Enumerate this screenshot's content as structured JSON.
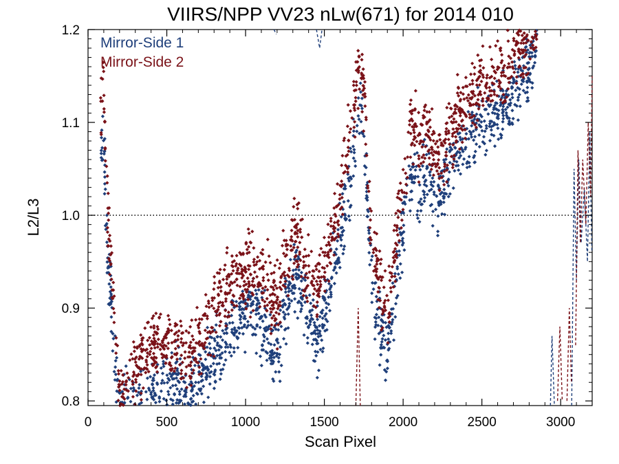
{
  "chart_data": {
    "type": "scatter",
    "title": "VIIRS/NPP VV23 nLw(671) for 2014 010",
    "xlabel": "Scan Pixel",
    "ylabel": "L2/L3",
    "xlim": [
      0,
      3200
    ],
    "ylim": [
      0.795,
      1.2
    ],
    "xticks": [
      0,
      500,
      1000,
      1500,
      2000,
      2500,
      3000
    ],
    "xtick_labels": [
      "0",
      "500",
      "1000",
      "1500",
      "2000",
      "2500",
      "3000"
    ],
    "yticks": [
      0.8,
      0.9,
      1.0,
      1.1,
      1.2
    ],
    "ytick_labels": [
      "0.8",
      "0.9",
      "1.0",
      "1.1",
      "1.2"
    ],
    "reference_line": {
      "y": 1.0,
      "style": "dotted"
    },
    "grid": false,
    "legend_position": "top-left",
    "colors": {
      "mirror_side_1": "#1f3f7a",
      "mirror_side_2": "#7a1218"
    },
    "series": [
      {
        "name": "Mirror-Side 1",
        "color": "#1f3f7a",
        "profile": [
          [
            80,
            1.06
          ],
          [
            100,
            1.09
          ],
          [
            120,
            0.97
          ],
          [
            150,
            0.9
          ],
          [
            175,
            0.83
          ],
          [
            200,
            0.79
          ],
          [
            300,
            0.79
          ],
          [
            350,
            0.8
          ],
          [
            450,
            0.81
          ],
          [
            550,
            0.82
          ],
          [
            650,
            0.8
          ],
          [
            750,
            0.84
          ],
          [
            850,
            0.86
          ],
          [
            950,
            0.89
          ],
          [
            1050,
            0.9
          ],
          [
            1150,
            0.87
          ],
          [
            1200,
            0.85
          ],
          [
            1250,
            0.9
          ],
          [
            1320,
            0.935
          ],
          [
            1400,
            0.89
          ],
          [
            1460,
            0.86
          ],
          [
            1500,
            0.89
          ],
          [
            1550,
            0.94
          ],
          [
            1600,
            0.97
          ],
          [
            1650,
            1.02
          ],
          [
            1700,
            1.08
          ],
          [
            1730,
            1.13
          ],
          [
            1760,
            1.06
          ],
          [
            1800,
            0.93
          ],
          [
            1850,
            0.88
          ],
          [
            1900,
            0.85
          ],
          [
            1950,
            0.92
          ],
          [
            2000,
            0.98
          ],
          [
            2050,
            1.05
          ],
          [
            2100,
            1.02
          ],
          [
            2150,
            1.04
          ],
          [
            2200,
            1.02
          ],
          [
            2250,
            1.03
          ],
          [
            2300,
            1.05
          ],
          [
            2400,
            1.08
          ],
          [
            2500,
            1.1
          ],
          [
            2600,
            1.11
          ],
          [
            2700,
            1.13
          ],
          [
            2800,
            1.16
          ],
          [
            2850,
            1.18
          ]
        ],
        "spread": 0.022,
        "count": 1500
      },
      {
        "name": "Mirror-Side 2",
        "color": "#7a1218",
        "profile": [
          [
            80,
            1.12
          ],
          [
            100,
            1.15
          ],
          [
            120,
            1.01
          ],
          [
            150,
            0.94
          ],
          [
            175,
            0.86
          ],
          [
            200,
            0.8
          ],
          [
            300,
            0.83
          ],
          [
            350,
            0.85
          ],
          [
            450,
            0.86
          ],
          [
            550,
            0.855
          ],
          [
            650,
            0.85
          ],
          [
            750,
            0.88
          ],
          [
            850,
            0.91
          ],
          [
            950,
            0.94
          ],
          [
            1050,
            0.945
          ],
          [
            1150,
            0.92
          ],
          [
            1200,
            0.9
          ],
          [
            1250,
            0.95
          ],
          [
            1320,
            0.98
          ],
          [
            1400,
            0.94
          ],
          [
            1460,
            0.92
          ],
          [
            1500,
            0.94
          ],
          [
            1550,
            0.98
          ],
          [
            1600,
            1.02
          ],
          [
            1650,
            1.07
          ],
          [
            1700,
            1.13
          ],
          [
            1730,
            1.18
          ],
          [
            1760,
            1.11
          ],
          [
            1800,
            0.97
          ],
          [
            1850,
            0.93
          ],
          [
            1900,
            0.9
          ],
          [
            1950,
            0.97
          ],
          [
            2000,
            1.03
          ],
          [
            2050,
            1.1
          ],
          [
            2100,
            1.08
          ],
          [
            2150,
            1.09
          ],
          [
            2200,
            1.06
          ],
          [
            2250,
            1.07
          ],
          [
            2300,
            1.09
          ],
          [
            2400,
            1.12
          ],
          [
            2500,
            1.14
          ],
          [
            2600,
            1.15
          ],
          [
            2700,
            1.17
          ],
          [
            2800,
            1.19
          ],
          [
            2850,
            1.21
          ]
        ],
        "spread": 0.024,
        "count": 1500
      }
    ],
    "tail_segments": {
      "mirror_side_1": [
        [
          [
            1180,
            1.21
          ],
          [
            1195,
            1.195
          ]
        ],
        [
          [
            1450,
            1.21
          ],
          [
            1470,
            1.18
          ],
          [
            1485,
            1.205
          ]
        ],
        [
          [
            2935,
            0.795
          ],
          [
            2945,
            0.87
          ],
          [
            2960,
            0.78
          ]
        ],
        [
          [
            3070,
            0.79
          ],
          [
            3085,
            1.05
          ],
          [
            3100,
            0.93
          ],
          [
            3115,
            1.06
          ],
          [
            3130,
            0.97
          ],
          [
            3150,
            1.03
          ],
          [
            3170,
            0.95
          ],
          [
            3185,
            1.09
          ],
          [
            3198,
            0.96
          ]
        ]
      ],
      "mirror_side_2": [
        [
          [
            1700,
            0.795
          ],
          [
            1715,
            0.9
          ],
          [
            1728,
            0.795
          ]
        ],
        [
          [
            2980,
            0.8
          ],
          [
            2995,
            0.88
          ],
          [
            3010,
            0.8
          ]
        ],
        [
          [
            3040,
            0.8
          ],
          [
            3055,
            0.9
          ],
          [
            3068,
            0.82
          ]
        ],
        [
          [
            3095,
            0.86
          ],
          [
            3110,
            1.07
          ],
          [
            3125,
            0.97
          ],
          [
            3140,
            1.06
          ],
          [
            3160,
            0.99
          ],
          [
            3175,
            1.1
          ],
          [
            3190,
            1.02
          ],
          [
            3200,
            1.15
          ]
        ]
      ]
    }
  }
}
